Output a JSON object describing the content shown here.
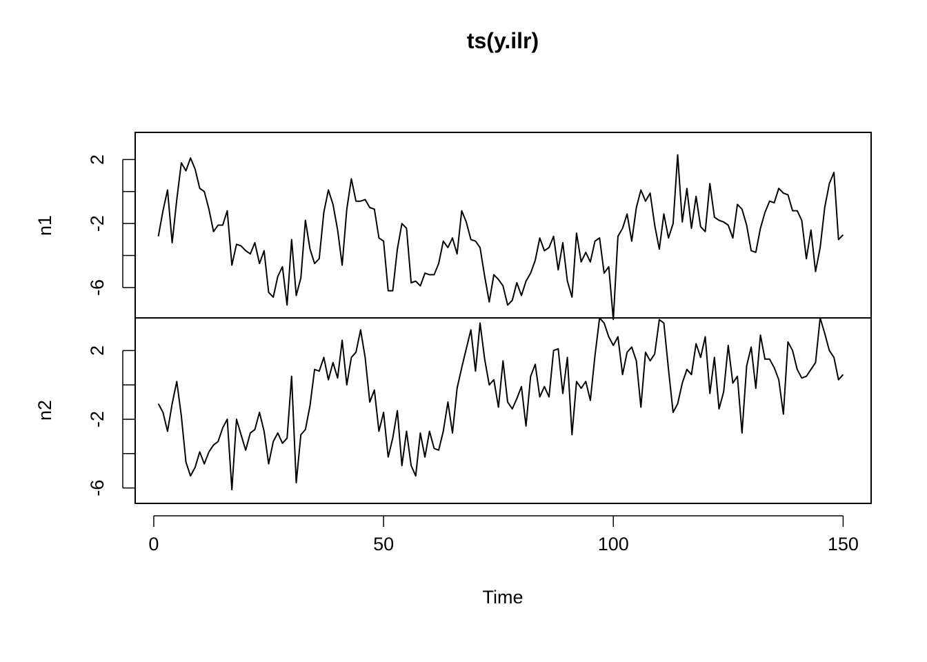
{
  "chart_data": {
    "type": "line",
    "title": "ts(y.ilr)",
    "xlabel": "Time",
    "xlim": [
      1,
      150
    ],
    "x_ticks": [
      0,
      50,
      100,
      150
    ],
    "x_tick_labels": [
      "0",
      "50",
      "100",
      "150"
    ],
    "panels": [
      {
        "ylabel": "n1",
        "ylim": [
          -7.9,
          3.7
        ],
        "y_ticks": [
          -6,
          -4,
          -2,
          0,
          2
        ],
        "y_tick_labels": [
          "-6",
          "",
          "-2",
          "",
          "2"
        ]
      },
      {
        "ylabel": "n2",
        "ylim": [
          -6.9,
          3.9
        ],
        "y_ticks": [
          -6,
          -4,
          -2,
          0,
          2
        ],
        "y_tick_labels": [
          "-6",
          "",
          "-2",
          "",
          "2"
        ]
      }
    ],
    "series": [
      {
        "name": "n1",
        "values": [
          -2.8,
          -1.2,
          0.1,
          -3.2,
          -0.5,
          1.8,
          1.3,
          2.1,
          1.4,
          0.2,
          0.0,
          -1.1,
          -2.5,
          -2.1,
          -2.1,
          -1.2,
          -4.6,
          -3.3,
          -3.4,
          -3.7,
          -3.9,
          -3.2,
          -4.5,
          -3.7,
          -6.3,
          -6.6,
          -5.3,
          -4.7,
          -7.1,
          -3.0,
          -6.5,
          -5.4,
          -1.8,
          -3.6,
          -4.5,
          -4.2,
          -1.3,
          0.1,
          -0.8,
          -2.4,
          -4.6,
          -1.1,
          0.8,
          -0.6,
          -0.6,
          -0.5,
          -1.0,
          -1.1,
          -2.9,
          -3.1,
          -6.2,
          -6.2,
          -3.6,
          -2.0,
          -2.3,
          -5.7,
          -5.6,
          -5.9,
          -5.1,
          -5.2,
          -5.2,
          -4.5,
          -3.1,
          -3.5,
          -2.9,
          -3.9,
          -1.2,
          -1.9,
          -3.0,
          -3.1,
          -3.5,
          -5.3,
          -6.9,
          -5.2,
          -5.5,
          -5.9,
          -7.1,
          -6.8,
          -5.7,
          -6.5,
          -5.6,
          -5.1,
          -4.3,
          -2.9,
          -3.7,
          -3.5,
          -2.8,
          -4.9,
          -3.2,
          -5.6,
          -6.6,
          -2.6,
          -4.4,
          -3.8,
          -4.4,
          -3.1,
          -2.9,
          -5.1,
          -4.7,
          -8.0,
          -2.8,
          -2.3,
          -1.4,
          -3.1,
          -1.0,
          0.1,
          -0.6,
          -0.1,
          -2.1,
          -3.6,
          -1.4,
          -2.9,
          -2.0,
          2.3,
          -1.9,
          0.2,
          -2.3,
          -0.3,
          -2.2,
          -2.5,
          0.5,
          -1.6,
          -1.8,
          -1.9,
          -2.1,
          -2.9,
          -0.8,
          -1.1,
          -2.1,
          -3.7,
          -3.8,
          -2.3,
          -1.3,
          -0.6,
          -0.7,
          0.2,
          -0.1,
          -0.2,
          -1.2,
          -1.2,
          -1.8,
          -4.2,
          -2.4,
          -5.0,
          -3.5,
          -1.0,
          0.5,
          1.2,
          -3.0,
          -2.7
        ]
      },
      {
        "name": "n2",
        "values": [
          -1.1,
          -1.6,
          -2.7,
          -1.1,
          0.2,
          -1.8,
          -4.5,
          -5.3,
          -4.8,
          -3.9,
          -4.6,
          -3.9,
          -3.5,
          -3.3,
          -2.5,
          -2.0,
          -6.1,
          -2.0,
          -2.9,
          -3.8,
          -2.8,
          -2.6,
          -1.6,
          -2.7,
          -4.6,
          -3.3,
          -2.8,
          -3.4,
          -3.1,
          0.5,
          -5.7,
          -2.9,
          -2.6,
          -1.2,
          0.9,
          0.8,
          1.6,
          0.3,
          1.3,
          0.4,
          2.6,
          0.0,
          1.6,
          1.9,
          3.2,
          1.6,
          -1.0,
          -0.3,
          -2.7,
          -1.6,
          -4.2,
          -3.1,
          -1.5,
          -4.7,
          -2.7,
          -4.7,
          -5.3,
          -2.8,
          -4.2,
          -2.7,
          -3.7,
          -3.8,
          -2.7,
          -1.0,
          -2.8,
          -0.2,
          1.0,
          2.1,
          3.2,
          0.8,
          3.6,
          1.5,
          0.0,
          0.3,
          -1.3,
          1.4,
          -1.0,
          -1.4,
          -0.8,
          -0.1,
          -2.4,
          0.5,
          1.2,
          -0.7,
          -0.1,
          -0.7,
          2.0,
          2.1,
          -0.5,
          1.6,
          -2.9,
          0.2,
          -0.2,
          0.2,
          -0.9,
          1.7,
          3.9,
          3.6,
          2.8,
          2.3,
          2.8,
          0.6,
          1.9,
          2.2,
          1.4,
          -1.3,
          1.9,
          1.4,
          1.8,
          3.8,
          3.6,
          0.9,
          -1.6,
          -1.1,
          0.1,
          0.9,
          0.6,
          2.4,
          1.6,
          2.8,
          -0.5,
          1.6,
          -1.4,
          -0.4,
          2.3,
          0.1,
          0.5,
          -2.8,
          1.1,
          2.2,
          -0.2,
          2.9,
          1.5,
          1.5,
          1.0,
          0.3,
          -1.7,
          2.5,
          2.0,
          0.9,
          0.4,
          0.5,
          0.9,
          1.3,
          3.9,
          3.0,
          2.0,
          1.6,
          0.3,
          0.6
        ]
      }
    ]
  }
}
